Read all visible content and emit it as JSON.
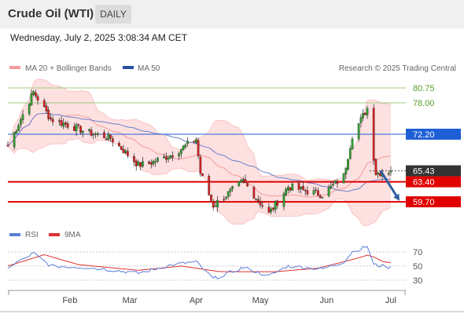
{
  "header": {
    "title": "Crude Oil (WTI)",
    "period": "DAILY"
  },
  "timestamp": "Wednesday, July 2, 2025 3:08:34 AM CET",
  "legend": {
    "bollinger": "MA 20 + Bollinger Bands",
    "ma50": "MA 50",
    "credit": "Research © 2025 Trading Central",
    "rsi": "RSI",
    "rsi_ma": "9MA"
  },
  "colors": {
    "up": "#2f9e2f",
    "down": "#d42020",
    "bollinger_fill": "#fde0e0",
    "bollinger_line": "#f59a9a",
    "ma50": "#6b7fc9",
    "resistance": "#9fcb7f",
    "pivot": "#1f5fd6",
    "support": "#e00000",
    "current": "#333333",
    "arrow": "#2f5f9f",
    "rsi": "#5b7fd9",
    "rsi_ma": "#e03030"
  },
  "chart_data": [
    {
      "type": "candlestick",
      "x_range": [
        "2025-01-03",
        "2025-07-08"
      ],
      "x_ticks": [
        "Feb",
        "Mar",
        "Apr",
        "May",
        "Jun",
        "Jul"
      ],
      "ylim": [
        55.5,
        82.5
      ],
      "levels": [
        {
          "value": 80.75,
          "label": "80.75",
          "kind": "resistance"
        },
        {
          "value": 78.0,
          "label": "78.00",
          "kind": "resistance"
        },
        {
          "value": 72.2,
          "label": "72.20",
          "kind": "pivot"
        },
        {
          "value": 65.43,
          "label": "65.43",
          "kind": "current"
        },
        {
          "value": 63.4,
          "label": "63.40",
          "kind": "support"
        },
        {
          "value": 59.7,
          "label": "59.70",
          "kind": "support"
        }
      ],
      "anchors": [
        [
          "2025-01-03",
          70.0
        ],
        [
          "2025-01-15",
          80.0
        ],
        [
          "2025-01-23",
          75.0
        ],
        [
          "2025-02-10",
          72.5
        ],
        [
          "2025-02-20",
          71.5
        ],
        [
          "2025-03-05",
          66.5
        ],
        [
          "2025-03-10",
          66.8
        ],
        [
          "2025-03-21",
          68.5
        ],
        [
          "2025-04-01",
          71.3
        ],
        [
          "2025-04-03",
          65.0
        ],
        [
          "2025-04-09",
          59.0
        ],
        [
          "2025-04-23",
          63.5
        ],
        [
          "2025-05-05",
          57.5
        ],
        [
          "2025-05-14",
          62.5
        ],
        [
          "2025-05-30",
          61.0
        ],
        [
          "2025-06-09",
          64.5
        ],
        [
          "2025-06-13",
          72.0
        ],
        [
          "2025-06-20",
          77.0
        ],
        [
          "2025-06-23",
          68.0
        ],
        [
          "2025-06-24",
          65.0
        ],
        [
          "2025-07-01",
          65.43
        ]
      ]
    },
    {
      "type": "line",
      "title": "RSI",
      "yticks": [
        30,
        50,
        70
      ],
      "ylim": [
        20,
        82
      ],
      "anchors": [
        [
          "2025-01-03",
          48
        ],
        [
          "2025-01-15",
          68
        ],
        [
          "2025-01-23",
          50
        ],
        [
          "2025-02-10",
          48
        ],
        [
          "2025-03-05",
          40
        ],
        [
          "2025-03-21",
          52
        ],
        [
          "2025-04-01",
          56
        ],
        [
          "2025-04-09",
          32
        ],
        [
          "2025-04-23",
          48
        ],
        [
          "2025-05-05",
          36
        ],
        [
          "2025-05-14",
          50
        ],
        [
          "2025-05-30",
          46
        ],
        [
          "2025-06-09",
          56
        ],
        [
          "2025-06-13",
          70
        ],
        [
          "2025-06-20",
          78
        ],
        [
          "2025-06-23",
          52
        ],
        [
          "2025-07-01",
          48
        ]
      ],
      "ma9_anchors": [
        [
          "2025-01-03",
          50
        ],
        [
          "2025-01-20",
          66
        ],
        [
          "2025-02-05",
          52
        ],
        [
          "2025-03-05",
          44
        ],
        [
          "2025-03-25",
          50
        ],
        [
          "2025-04-12",
          42
        ],
        [
          "2025-05-08",
          42
        ],
        [
          "2025-05-28",
          47
        ],
        [
          "2025-06-14",
          60
        ],
        [
          "2025-06-21",
          66
        ],
        [
          "2025-06-28",
          55
        ]
      ]
    }
  ]
}
